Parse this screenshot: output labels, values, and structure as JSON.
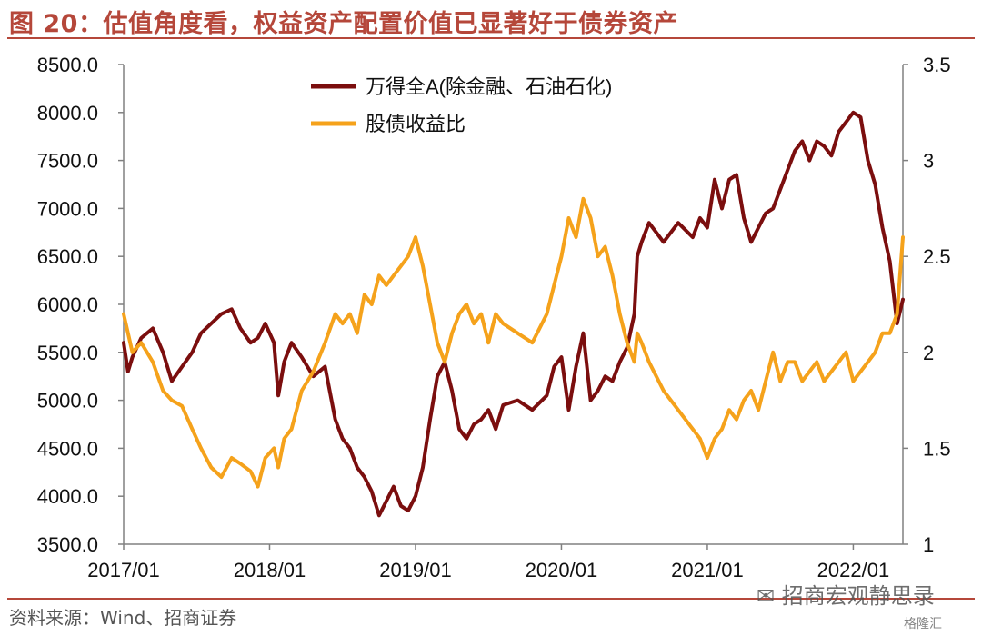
{
  "header": {
    "title": "图 20：估值角度看，权益资产配置价值已显著好于债券资产"
  },
  "footer": {
    "source": "资料来源：Wind、招商证券",
    "watermark": "招商宏观静思录",
    "logo": "格隆汇"
  },
  "colors": {
    "accent": "#b5473a",
    "series_a": "#7b0e0e",
    "series_b": "#f5a21b"
  },
  "icons": {
    "watermark": "wechat-icon"
  },
  "chart_data": {
    "type": "line",
    "title": "",
    "xlabel": "",
    "ylabel": "",
    "y2label": "",
    "x_ticks": [
      "2017/01",
      "2018/01",
      "2019/01",
      "2020/01",
      "2021/01",
      "2022/01"
    ],
    "x_range": [
      2017.0,
      2022.34
    ],
    "ylim": [
      3500,
      8500
    ],
    "yticks": [
      "3500.0",
      "4000.0",
      "4500.0",
      "5000.0",
      "5500.0",
      "6000.0",
      "6500.0",
      "7000.0",
      "7500.0",
      "8000.0",
      "8500.0"
    ],
    "y2lim": [
      1,
      3.5
    ],
    "y2ticks": [
      "1",
      "1.5",
      "2",
      "2.5",
      "3",
      "3.5"
    ],
    "grid": false,
    "legend_position": "top-center",
    "series": [
      {
        "name": "万得全A(除金融、石油石化)",
        "axis": "left",
        "x": [
          2017.0,
          2017.03,
          2017.06,
          2017.12,
          2017.2,
          2017.27,
          2017.33,
          2017.4,
          2017.47,
          2017.53,
          2017.6,
          2017.67,
          2017.74,
          2017.8,
          2017.87,
          2017.92,
          2017.97,
          2018.03,
          2018.06,
          2018.1,
          2018.15,
          2018.22,
          2018.3,
          2018.38,
          2018.45,
          2018.5,
          2018.55,
          2018.6,
          2018.65,
          2018.7,
          2018.75,
          2018.8,
          2018.85,
          2018.9,
          2018.95,
          2019.0,
          2019.05,
          2019.1,
          2019.15,
          2019.2,
          2019.25,
          2019.3,
          2019.35,
          2019.4,
          2019.45,
          2019.5,
          2019.55,
          2019.6,
          2019.7,
          2019.8,
          2019.9,
          2019.95,
          2020.0,
          2020.05,
          2020.1,
          2020.15,
          2020.2,
          2020.25,
          2020.3,
          2020.35,
          2020.4,
          2020.45,
          2020.5,
          2020.52,
          2020.55,
          2020.6,
          2020.7,
          2020.8,
          2020.9,
          2020.95,
          2021.0,
          2021.05,
          2021.1,
          2021.15,
          2021.2,
          2021.25,
          2021.3,
          2021.35,
          2021.4,
          2021.45,
          2021.5,
          2021.55,
          2021.6,
          2021.65,
          2021.7,
          2021.75,
          2021.8,
          2021.85,
          2021.9,
          2021.95,
          2022.0,
          2022.05,
          2022.1,
          2022.15,
          2022.2,
          2022.25,
          2022.3,
          2022.34
        ],
        "y": [
          5600,
          5300,
          5450,
          5650,
          5750,
          5500,
          5200,
          5350,
          5500,
          5700,
          5800,
          5900,
          5950,
          5750,
          5600,
          5650,
          5800,
          5600,
          5050,
          5400,
          5600,
          5450,
          5250,
          5350,
          4800,
          4600,
          4500,
          4300,
          4200,
          4050,
          3800,
          3950,
          4100,
          3900,
          3850,
          4000,
          4300,
          4800,
          5250,
          5400,
          5100,
          4700,
          4600,
          4750,
          4800,
          4900,
          4700,
          4950,
          5000,
          4900,
          5050,
          5350,
          5450,
          4900,
          5350,
          5700,
          5000,
          5100,
          5250,
          5200,
          5400,
          5550,
          5900,
          6500,
          6650,
          6850,
          6650,
          6850,
          6700,
          6900,
          6800,
          7300,
          7000,
          7300,
          7350,
          6900,
          6650,
          6800,
          6950,
          7000,
          7200,
          7400,
          7600,
          7700,
          7500,
          7700,
          7650,
          7550,
          7800,
          7900,
          8000,
          7950,
          7500,
          7250,
          6800,
          6450,
          5800,
          6050
        ]
      },
      {
        "name": "股债收益比",
        "axis": "right",
        "x": [
          2017.0,
          2017.03,
          2017.06,
          2017.12,
          2017.2,
          2017.27,
          2017.33,
          2017.4,
          2017.47,
          2017.53,
          2017.6,
          2017.67,
          2017.74,
          2017.8,
          2017.87,
          2017.92,
          2017.97,
          2018.03,
          2018.06,
          2018.1,
          2018.15,
          2018.22,
          2018.3,
          2018.38,
          2018.45,
          2018.5,
          2018.55,
          2018.6,
          2018.65,
          2018.7,
          2018.75,
          2018.8,
          2018.85,
          2018.9,
          2018.95,
          2019.0,
          2019.05,
          2019.1,
          2019.15,
          2019.2,
          2019.25,
          2019.3,
          2019.35,
          2019.4,
          2019.45,
          2019.5,
          2019.55,
          2019.6,
          2019.7,
          2019.8,
          2019.9,
          2019.95,
          2020.0,
          2020.05,
          2020.1,
          2020.15,
          2020.2,
          2020.25,
          2020.3,
          2020.35,
          2020.4,
          2020.45,
          2020.5,
          2020.52,
          2020.55,
          2020.6,
          2020.7,
          2020.8,
          2020.9,
          2020.95,
          2021.0,
          2021.05,
          2021.1,
          2021.15,
          2021.2,
          2021.25,
          2021.3,
          2021.35,
          2021.4,
          2021.45,
          2021.5,
          2021.55,
          2021.6,
          2021.65,
          2021.7,
          2021.75,
          2021.8,
          2021.85,
          2021.9,
          2021.95,
          2022.0,
          2022.05,
          2022.1,
          2022.15,
          2022.2,
          2022.25,
          2022.3,
          2022.34
        ],
        "y": [
          2.2,
          2.1,
          2.0,
          2.05,
          1.95,
          1.8,
          1.75,
          1.72,
          1.6,
          1.5,
          1.4,
          1.35,
          1.45,
          1.42,
          1.38,
          1.3,
          1.45,
          1.5,
          1.4,
          1.55,
          1.6,
          1.8,
          1.9,
          2.05,
          2.2,
          2.15,
          2.2,
          2.1,
          2.3,
          2.25,
          2.4,
          2.35,
          2.4,
          2.45,
          2.5,
          2.6,
          2.45,
          2.25,
          2.05,
          1.95,
          2.1,
          2.2,
          2.25,
          2.15,
          2.2,
          2.05,
          2.2,
          2.15,
          2.1,
          2.05,
          2.2,
          2.35,
          2.5,
          2.7,
          2.6,
          2.8,
          2.7,
          2.5,
          2.55,
          2.4,
          2.2,
          2.05,
          1.95,
          2.1,
          2.05,
          1.95,
          1.8,
          1.7,
          1.6,
          1.55,
          1.45,
          1.55,
          1.6,
          1.7,
          1.65,
          1.75,
          1.8,
          1.7,
          1.85,
          2.0,
          1.85,
          1.95,
          1.95,
          1.85,
          1.9,
          1.95,
          1.85,
          1.9,
          1.95,
          2.0,
          1.85,
          1.9,
          1.95,
          2.0,
          2.1,
          2.1,
          2.2,
          2.6
        ]
      }
    ]
  }
}
